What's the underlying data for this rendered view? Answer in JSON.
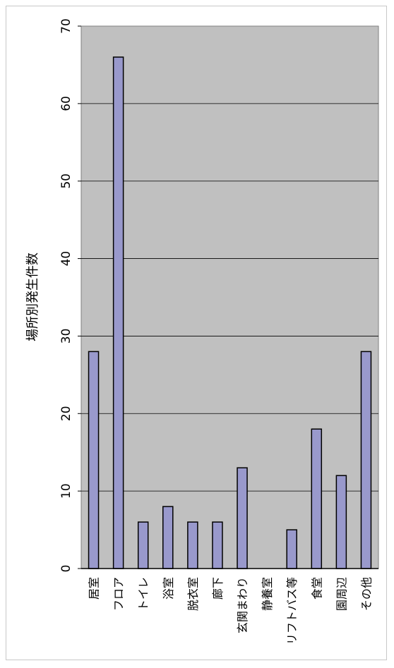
{
  "chart_data": {
    "type": "bar",
    "orientation": "rotated",
    "ylabel": "場所別発生件数",
    "xlabel": "",
    "title": "",
    "categories": [
      "居室",
      "フロア",
      "トイレ",
      "浴室",
      "脱衣室",
      "廊下",
      "玄関まわり",
      "静養室",
      "リフトバス等",
      "食堂",
      "園周辺",
      "その他"
    ],
    "values": [
      28,
      66,
      6,
      8,
      6,
      6,
      13,
      0,
      5,
      18,
      12,
      28
    ],
    "ylim": [
      0,
      70
    ],
    "yticks": [
      0,
      10,
      20,
      30,
      40,
      50,
      60,
      70
    ],
    "grid": true,
    "legend": "none",
    "colors": {
      "plot_background": "#c0c0c0",
      "bar_fill": "#9999cc",
      "bar_stroke": "#000000",
      "grid": "#000000"
    }
  }
}
